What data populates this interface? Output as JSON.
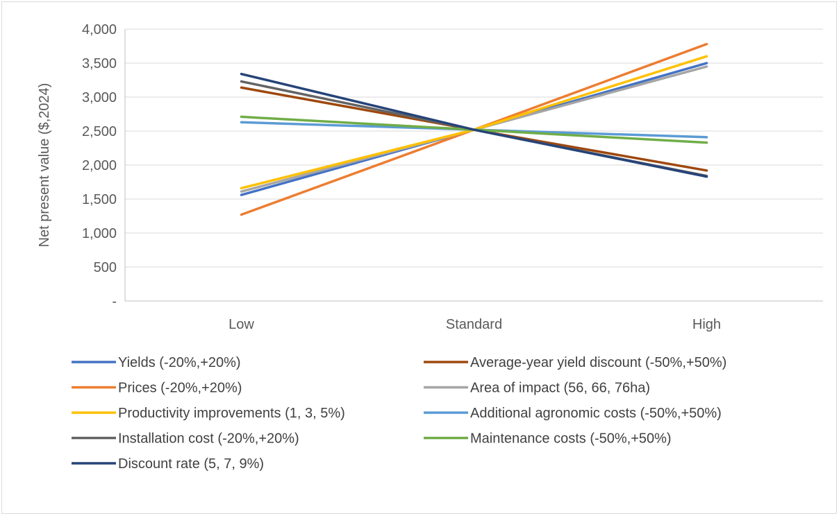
{
  "chart_data": {
    "type": "line",
    "title": "",
    "xlabel": "",
    "ylabel": "Net present value ($,2024)",
    "categories": [
      "Low",
      "Standard",
      "High"
    ],
    "ylim": [
      0,
      4000
    ],
    "yticks": [
      0,
      500,
      1000,
      1500,
      2000,
      2500,
      3000,
      3500,
      4000
    ],
    "ytick_labels": [
      "-",
      "500",
      "1,000",
      "1,500",
      "2,000",
      "2,500",
      "3,000",
      "3,500",
      "4,000"
    ],
    "grid": "horizontal",
    "legend_position": "bottom",
    "series": [
      {
        "name": "Yields (-20%,+20%)",
        "color": "#4472c4",
        "values": [
          1560,
          2520,
          3500
        ]
      },
      {
        "name": "Average-year yield discount (-50%,+50%)",
        "color": "#9e480e",
        "values": [
          3140,
          2520,
          1920
        ]
      },
      {
        "name": "Prices (-20%,+20%)",
        "color": "#ed7d31",
        "values": [
          1270,
          2520,
          3780
        ]
      },
      {
        "name": "Area of impact (56, 66, 76ha)",
        "color": "#a5a5a5",
        "values": [
          1610,
          2520,
          3450
        ]
      },
      {
        "name": "Productivity improvements (1, 3, 5%)",
        "color": "#ffc000",
        "values": [
          1660,
          2520,
          3600
        ]
      },
      {
        "name": "Additional agronomic costs (-50%,+50%)",
        "color": "#5b9bd5",
        "values": [
          2630,
          2520,
          2410
        ]
      },
      {
        "name": "Installation cost (-20%,+20%)",
        "color": "#636363",
        "values": [
          3230,
          2520,
          1840
        ]
      },
      {
        "name": "Maintenance costs (-50%,+50%)",
        "color": "#70ad47",
        "values": [
          2710,
          2520,
          2330
        ]
      },
      {
        "name": "Discount rate (5, 7, 9%)",
        "color": "#264478",
        "values": [
          3340,
          2520,
          1830
        ]
      }
    ]
  }
}
